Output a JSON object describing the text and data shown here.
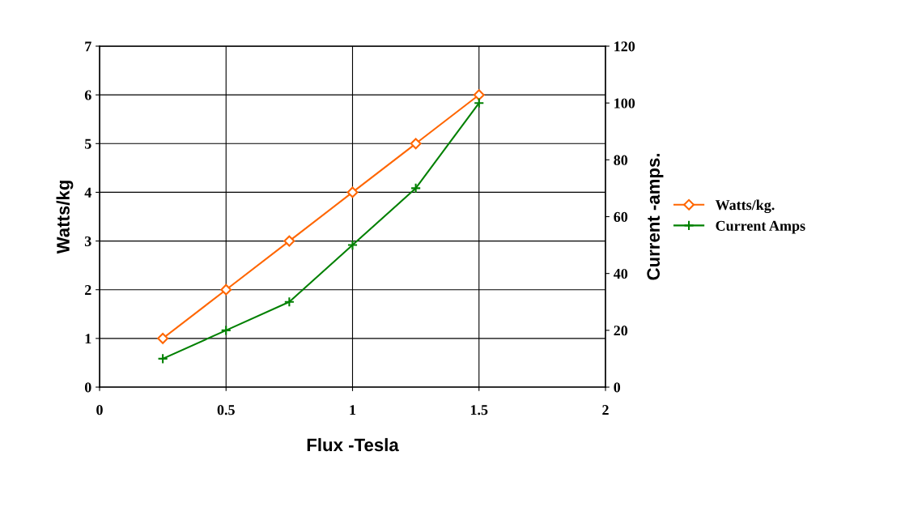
{
  "chart_data": {
    "type": "line",
    "xlabel": "Flux -Tesla",
    "ylabel": "Watts/kg",
    "y2label": "Current -amps.",
    "x": [
      0.25,
      0.5,
      0.75,
      1,
      1.25,
      1.5
    ],
    "series": [
      {
        "name": "Watts/kg.",
        "color": "#ff6600",
        "values": [
          1,
          2,
          3,
          4,
          5,
          6
        ],
        "marker": "diamond"
      },
      {
        "name": "Current Amps",
        "color": "#008000",
        "values": [
          10,
          20,
          30,
          50,
          70,
          100
        ],
        "marker": "cross",
        "axis": "y2"
      }
    ],
    "xlim": [
      0,
      2
    ],
    "xticks": [
      0,
      0.5,
      1,
      1.5,
      2
    ],
    "ylim": [
      0,
      7
    ],
    "yticks": [
      0,
      1,
      2,
      3,
      4,
      5,
      6,
      7
    ],
    "y2lim": [
      0,
      120
    ],
    "y2ticks": [
      0,
      20,
      40,
      60,
      80,
      100,
      120
    ],
    "grid": true,
    "legend": "right",
    "line_style": "solid"
  }
}
